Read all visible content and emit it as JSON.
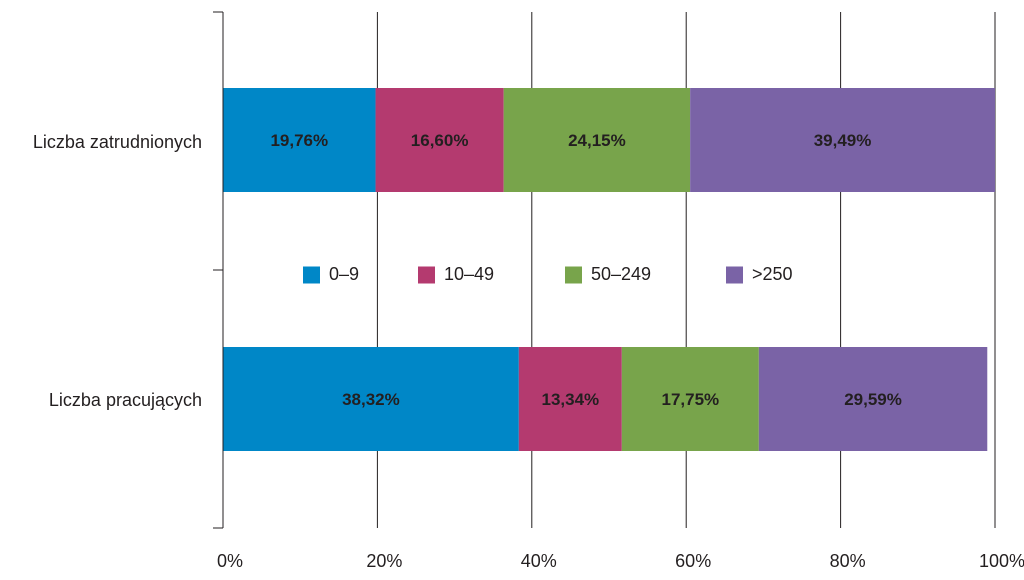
{
  "chart_data": {
    "type": "bar",
    "orientation": "horizontal",
    "stacked": true,
    "title": "",
    "xlabel": "",
    "ylabel": "",
    "xlim": [
      0,
      100
    ],
    "x_ticks": [
      "0%",
      "20%",
      "40%",
      "60%",
      "80%",
      "100%"
    ],
    "x_tick_values": [
      0,
      20,
      40,
      60,
      80,
      100
    ],
    "grid": true,
    "legend_position": "center",
    "categories": [
      "Liczba zatrudnionych",
      "Liczba pracujących"
    ],
    "series": [
      {
        "name": "0–9",
        "color": "#0087c7",
        "values": [
          19.76,
          38.32
        ],
        "labels": [
          "19,76%",
          "38,32%"
        ]
      },
      {
        "name": "10–49",
        "color": "#b43a6f",
        "values": [
          16.6,
          13.34
        ],
        "labels": [
          "16,60%",
          "13,34%"
        ]
      },
      {
        "name": "50–249",
        "color": "#78a44b",
        "values": [
          24.15,
          17.75
        ],
        "labels": [
          "24,15%",
          "17,75%"
        ]
      },
      {
        "name": ">250",
        "color": "#7a63a6",
        "values": [
          39.49,
          29.59
        ],
        "labels": [
          "39,49%",
          "29,59%"
        ]
      }
    ]
  }
}
